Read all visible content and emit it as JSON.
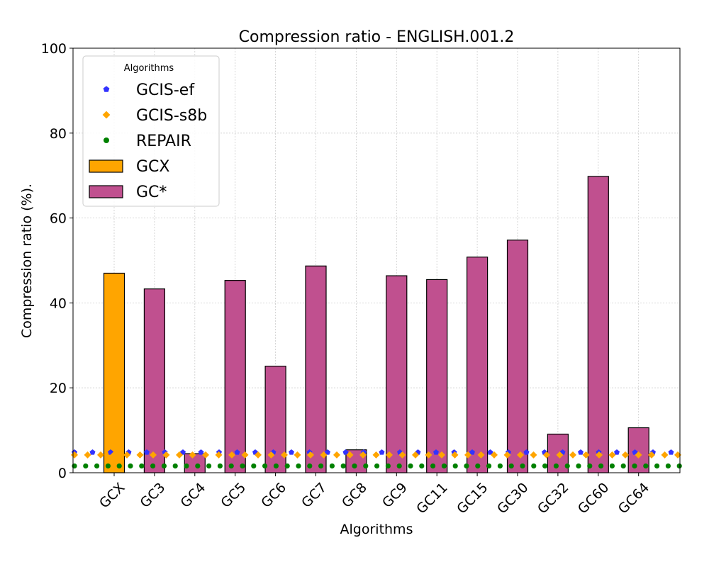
{
  "chart_data": {
    "type": "bar",
    "title": "Compression ratio -  ENGLISH.001.2",
    "xlabel": "Algorithms",
    "ylabel": "Compression ratio (%).",
    "ylim": [
      0,
      100
    ],
    "yticks": [
      0,
      20,
      40,
      60,
      80,
      100
    ],
    "grid": true,
    "legend": {
      "title": "Algorithms",
      "position": "top-left"
    },
    "categories": [
      "GCX",
      "GC3",
      "GC4",
      "GC5",
      "GC6",
      "GC7",
      "GC8",
      "GC9",
      "GC11",
      "GC15",
      "GC30",
      "GC32",
      "GC60",
      "GC64"
    ],
    "series": [
      {
        "name": "GCX",
        "kind": "bar",
        "color": "#ffa500",
        "values": [
          47,
          null,
          null,
          null,
          null,
          null,
          null,
          null,
          null,
          null,
          null,
          null,
          null,
          null
        ]
      },
      {
        "name": "GC*",
        "kind": "bar",
        "color": "#c0508f",
        "values": [
          null,
          43.3,
          4.5,
          45.3,
          25.1,
          48.7,
          5.4,
          46.4,
          45.5,
          50.8,
          54.8,
          9.1,
          69.8,
          10.6
        ]
      }
    ],
    "reference_lines": [
      {
        "name": "GCIS-ef",
        "value": 4.8,
        "color": "#3333ff",
        "marker": "pentagon"
      },
      {
        "name": "GCIS-s8b",
        "value": 4.2,
        "color": "#ffa500",
        "marker": "diamond"
      },
      {
        "name": "REPAIR",
        "value": 1.6,
        "color": "#008000",
        "marker": "circle"
      }
    ]
  }
}
